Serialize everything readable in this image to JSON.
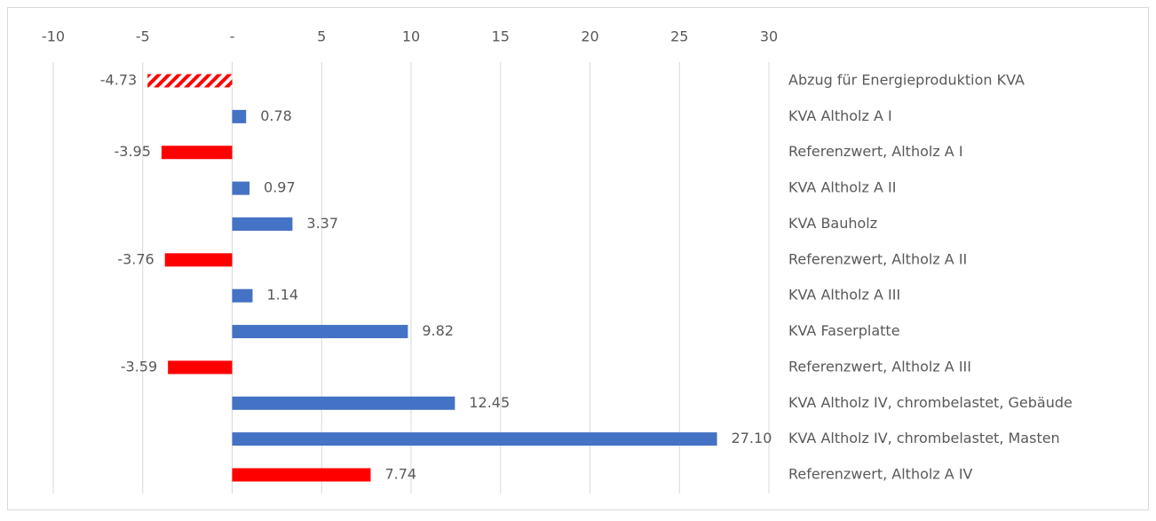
{
  "chart_data": {
    "type": "hbar",
    "categories": [
      "Abzug für Energieproduktion KVA",
      "KVA Altholz A I",
      "Referenzwert, Altholz A I",
      "KVA Altholz A II",
      "KVA Bauholz",
      "Referenzwert, Altholz A II",
      "KVA Altholz A III",
      "KVA Faserplatte",
      "Referenzwert, Altholz A III",
      "KVA Altholz IV, chrombelastet, Gebäude",
      "KVA Altholz IV, chrombelastet, Masten",
      "Referenzwert, Altholz A IV"
    ],
    "values": [
      -4.73,
      0.78,
      -3.95,
      0.97,
      3.37,
      -3.76,
      1.14,
      9.82,
      -3.59,
      12.45,
      27.1,
      7.74
    ],
    "value_labels": [
      "-4.73",
      "0.78",
      "-3.95",
      "0.97",
      "3.37",
      "-3.76",
      "1.14",
      "9.82",
      "-3.59",
      "12.45",
      "27.10",
      "7.74"
    ],
    "colors": [
      "#ff0000",
      "#4472c4",
      "#ff0000",
      "#4472c4",
      "#4472c4",
      "#ff0000",
      "#4472c4",
      "#4472c4",
      "#ff0000",
      "#4472c4",
      "#4472c4",
      "#ff0000"
    ],
    "patterns": [
      "hatch",
      "solid",
      "solid",
      "solid",
      "solid",
      "solid",
      "solid",
      "solid",
      "solid",
      "solid",
      "solid",
      "solid"
    ],
    "xlim": [
      -10,
      30
    ],
    "xticks": [
      -10,
      -5,
      {
        "value": 0,
        "label": "-"
      },
      5,
      10,
      15,
      20,
      25,
      30
    ],
    "grid": true
  }
}
